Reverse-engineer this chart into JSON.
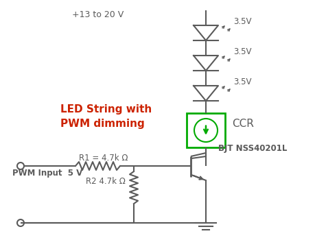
{
  "bg_color": "#ffffff",
  "line_color": "#5a5a5a",
  "green_color": "#00aa00",
  "red_text_color": "#cc2200",
  "vcc_label": "+13 to 20 V",
  "pwm_label": "PWM Input  5 V",
  "r1_label": "R1 = 4.7k Ω",
  "r2_label": "R2 4.7k Ω",
  "ccr_label": "CCR",
  "bjt_label": "BJT NSS40201L",
  "led_label": "LED String with\nPWM dimming",
  "v35_labels": [
    "3.5V",
    "3.5V",
    "3.5V"
  ]
}
